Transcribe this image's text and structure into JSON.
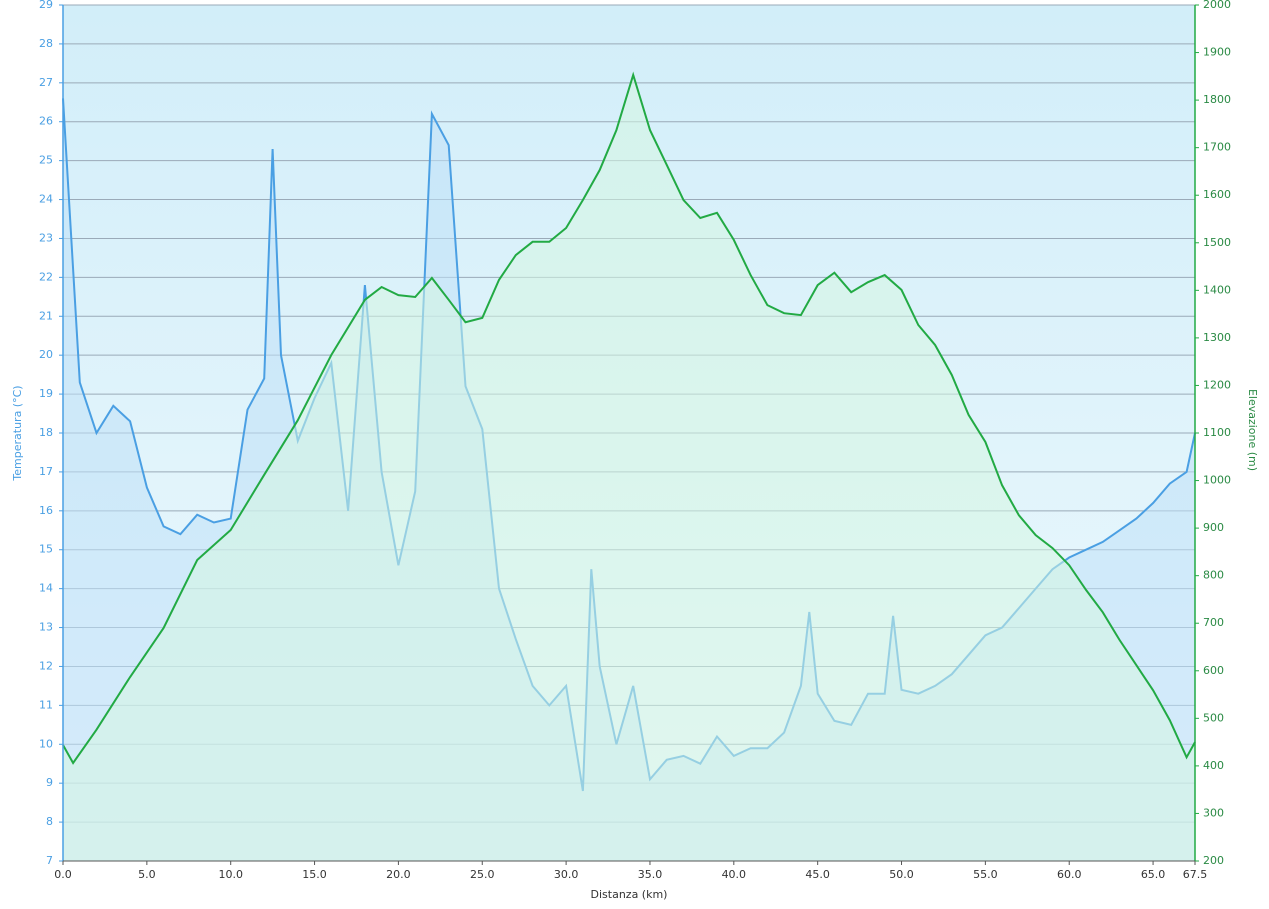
{
  "chart_data": {
    "type": "line",
    "x_label": "Distanza  (km)",
    "y_label": "Temperatura (°C)",
    "y2_label": "Elevazione (m)",
    "xlim": [
      0,
      67.5
    ],
    "xticks": [
      {
        "value": 0,
        "label": "0.0"
      },
      {
        "value": 5,
        "label": "5.0"
      },
      {
        "value": 10,
        "label": "10.0"
      },
      {
        "value": 15,
        "label": "15.0"
      },
      {
        "value": 20,
        "label": "20.0"
      },
      {
        "value": 25,
        "label": "25.0"
      },
      {
        "value": 30,
        "label": "30.0"
      },
      {
        "value": 35,
        "label": "35.0"
      },
      {
        "value": 40,
        "label": "40.0"
      },
      {
        "value": 45,
        "label": "45.0"
      },
      {
        "value": 50,
        "label": "50.0"
      },
      {
        "value": 55,
        "label": "55.0"
      },
      {
        "value": 60,
        "label": "60.0"
      },
      {
        "value": 65,
        "label": "65.0"
      },
      {
        "value": 67.5,
        "label": "67.5"
      }
    ],
    "ylim": [
      7,
      29
    ],
    "yticks": [
      7,
      8,
      9,
      10,
      11,
      12,
      13,
      14,
      15,
      16,
      17,
      18,
      19,
      20,
      21,
      22,
      23,
      24,
      25,
      26,
      27,
      28,
      29
    ],
    "y2lim": [
      200,
      2000
    ],
    "y2ticks": [
      200,
      300,
      400,
      500,
      600,
      700,
      800,
      900,
      1000,
      1100,
      1200,
      1300,
      1400,
      1500,
      1600,
      1700,
      1800,
      1900,
      2000
    ],
    "grid": true,
    "series": [
      {
        "name": "Temperatura",
        "color": "#4a9fe3",
        "fill": "#bfe0f7",
        "x": [
          0,
          1,
          2,
          3,
          4,
          5,
          6,
          7,
          8,
          9,
          10,
          11,
          12,
          12.5,
          13,
          14,
          15,
          16,
          17,
          18,
          19,
          20,
          21,
          22,
          23,
          24,
          25,
          26,
          27,
          28,
          29,
          30,
          31,
          31.5,
          32,
          33,
          34,
          35,
          36,
          37,
          38,
          39,
          40,
          41,
          42,
          43,
          44,
          44.5,
          45,
          46,
          47,
          48,
          49,
          49.5,
          50,
          51,
          52,
          53,
          54,
          55,
          56,
          57,
          58,
          59,
          60,
          61,
          62,
          63,
          64,
          65,
          66,
          67,
          67.5
        ],
        "values": [
          26.6,
          19.3,
          18.0,
          18.7,
          18.3,
          16.6,
          15.6,
          15.4,
          15.9,
          15.7,
          15.8,
          18.6,
          19.4,
          25.3,
          20.0,
          17.8,
          18.9,
          19.8,
          16.0,
          21.8,
          17.0,
          14.6,
          16.5,
          26.2,
          25.4,
          19.2,
          18.1,
          14.0,
          12.7,
          11.5,
          11.0,
          11.5,
          8.8,
          14.5,
          12.0,
          10.0,
          11.5,
          9.1,
          9.6,
          9.7,
          9.5,
          10.2,
          9.7,
          9.9,
          9.9,
          10.3,
          11.5,
          13.4,
          11.3,
          10.6,
          10.5,
          11.3,
          11.3,
          13.3,
          11.4,
          11.3,
          11.5,
          11.8,
          12.3,
          12.8,
          13.0,
          13.5,
          14.0,
          14.5,
          14.8,
          15.0,
          15.2,
          15.5,
          15.8,
          16.2,
          16.7,
          17.0,
          18.0
        ]
      },
      {
        "name": "Elevazione",
        "color": "#22aa44",
        "fill": "#d6f5e2",
        "axis": "y2",
        "x": [
          0,
          0.6,
          2,
          4,
          6,
          8,
          10,
          12,
          14,
          16,
          18,
          19,
          20,
          21,
          22,
          23,
          24,
          25,
          26,
          27,
          28,
          29,
          30,
          31,
          32,
          33,
          34,
          35,
          36,
          37,
          38,
          39,
          40,
          41,
          42,
          43,
          44,
          45,
          46,
          47,
          48,
          49,
          50,
          51,
          52,
          53,
          54,
          55,
          56,
          57,
          58,
          59,
          60,
          61,
          62,
          63,
          64,
          65,
          66,
          67,
          67.5
        ],
        "values": [
          444,
          406,
          476,
          587,
          690,
          833,
          896,
          1012,
          1127,
          1264,
          1380,
          1407,
          1390,
          1386,
          1426,
          1380,
          1333,
          1342,
          1422,
          1474,
          1502,
          1502,
          1531,
          1590,
          1653,
          1737,
          1853,
          1737,
          1664,
          1590,
          1552,
          1563,
          1506,
          1432,
          1369,
          1352,
          1348,
          1411,
          1437,
          1396,
          1417,
          1432,
          1401,
          1327,
          1285,
          1222,
          1138,
          1081,
          990,
          927,
          885,
          858,
          822,
          770,
          723,
          665,
          612,
          559,
          496,
          418,
          450
        ]
      }
    ]
  }
}
